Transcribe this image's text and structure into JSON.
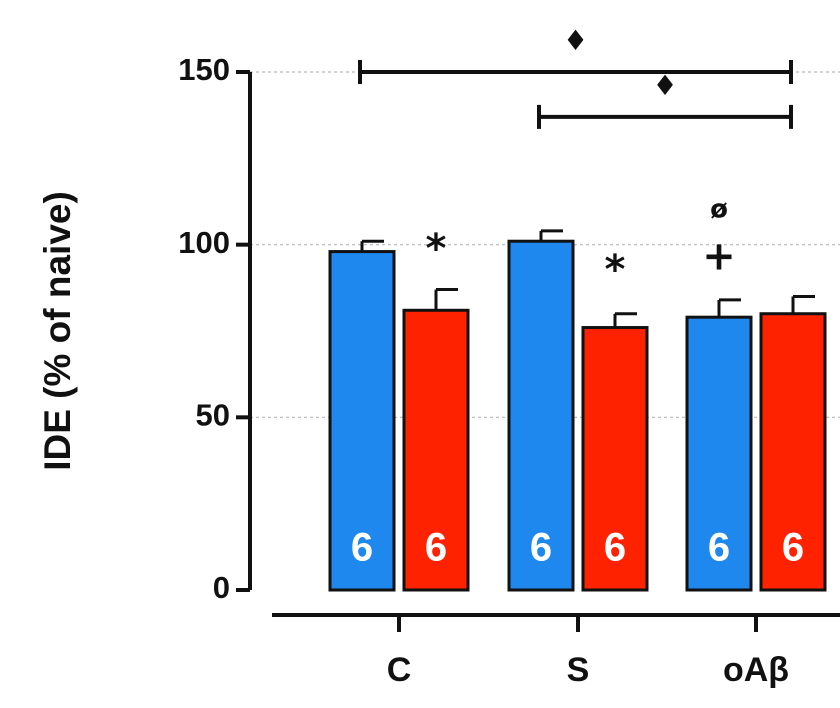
{
  "chart_data": {
    "type": "bar",
    "ylabel": "IDE (% of naive)",
    "ylim": [
      0,
      150
    ],
    "yticks": [
      "0",
      "50",
      "100",
      "150"
    ],
    "grid": true,
    "categories": [
      "C",
      "S",
      "oAβ"
    ],
    "series": [
      {
        "color": "#1e88ee",
        "values": [
          98,
          101,
          79
        ],
        "errors": [
          3,
          3,
          5
        ],
        "n": [
          "6",
          "6",
          "6"
        ]
      },
      {
        "color": "#ff2200",
        "values": [
          81,
          76,
          80
        ],
        "errors": [
          6,
          4,
          5
        ],
        "n": [
          "6",
          "6",
          "6"
        ]
      }
    ],
    "annotations": [
      {
        "text": "*",
        "category": 0,
        "series": 1,
        "y": 101
      },
      {
        "text": "*",
        "category": 1,
        "series": 1,
        "y": 95
      },
      {
        "text": "+",
        "category": 2,
        "series": 0,
        "y": 96
      },
      {
        "text": "ø",
        "category": 2,
        "series": 0,
        "y": 110
      }
    ],
    "brackets": [
      {
        "from_category": 0,
        "to_category": 2,
        "y": 150,
        "symbol": "♦"
      },
      {
        "from_category": 1,
        "to_category": 2,
        "y": 137,
        "symbol": "♦"
      }
    ]
  }
}
